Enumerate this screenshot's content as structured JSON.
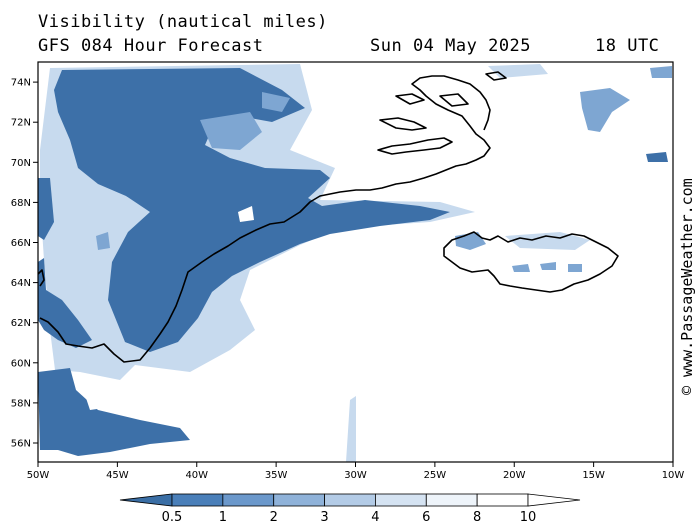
{
  "header": {
    "title": "Visibility (nautical miles)",
    "model": "GFS 084 Hour Forecast",
    "date": "Sun 04 May 2025",
    "time": "18 UTC"
  },
  "axes": {
    "lat_labels": [
      "56N",
      "58N",
      "60N",
      "62N",
      "64N",
      "66N",
      "68N",
      "70N",
      "72N",
      "74N"
    ],
    "lon_labels": [
      "50W",
      "45W",
      "40W",
      "35W",
      "30W",
      "25W",
      "20W",
      "15W",
      "10W"
    ]
  },
  "colorbar": {
    "labels": [
      "0.5",
      "1",
      "2",
      "3",
      "4",
      "6",
      "8",
      "10"
    ],
    "colors": [
      "#3a6ea5",
      "#4a7fb9",
      "#6b98cb",
      "#8fb2d9",
      "#b3cbe6",
      "#d5e3f2",
      "#eef4fa",
      "#ffffff"
    ]
  },
  "credit": "© www.PassageWeather.com",
  "colors": {
    "fog": "#3d70a8",
    "fog_light": "#7ea6d2",
    "fog_faint": "#c7daee",
    "land_outline": "#000000"
  }
}
